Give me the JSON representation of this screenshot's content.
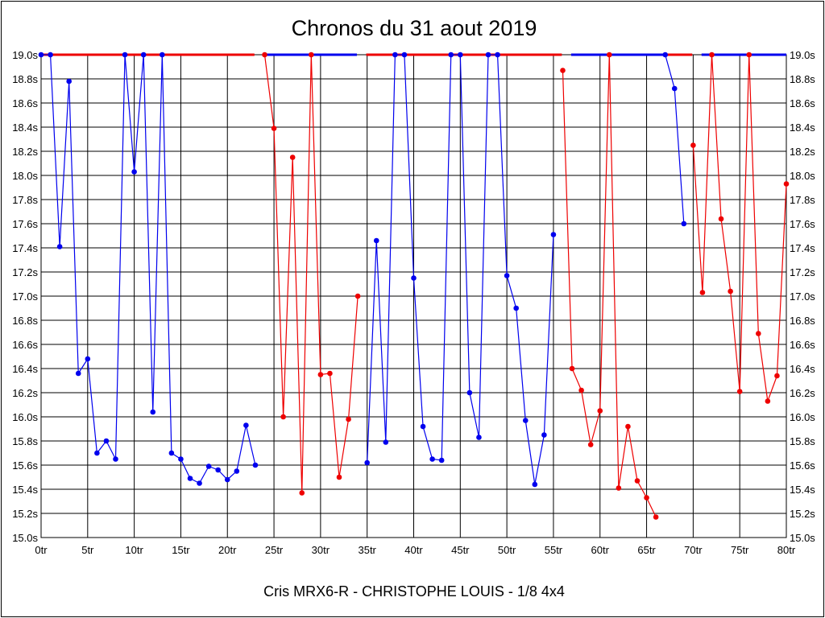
{
  "chart_data": {
    "type": "line",
    "title": "Chronos du 31 aout 2019",
    "caption": "Cris MRX6-R - CHRISTOPHE LOUIS - 1/8 4x4",
    "x_tick_labels": [
      "0tr",
      "5tr",
      "10tr",
      "15tr",
      "20tr",
      "25tr",
      "30tr",
      "35tr",
      "40tr",
      "45tr",
      "50tr",
      "55tr",
      "60tr",
      "65tr",
      "70tr",
      "75tr",
      "80tr"
    ],
    "y_tick_labels": [
      "15.0s",
      "15.2s",
      "15.4s",
      "15.6s",
      "15.8s",
      "16.0s",
      "16.2s",
      "16.4s",
      "16.6s",
      "16.8s",
      "17.0s",
      "17.2s",
      "17.4s",
      "17.6s",
      "17.8s",
      "18.0s",
      "18.2s",
      "18.4s",
      "18.6s",
      "18.8s",
      "19.0s"
    ],
    "xlim": [
      0,
      80
    ],
    "ylim": [
      15.0,
      19.0
    ],
    "grid": true,
    "colors": {
      "series_a": "#0000ee",
      "series_b": "#ee0000"
    },
    "segments": [
      {
        "color": "series_a",
        "points": [
          [
            0,
            19.0
          ],
          [
            1,
            19.0
          ],
          [
            2,
            17.41
          ],
          [
            3,
            18.78
          ],
          [
            4,
            16.36
          ],
          [
            5,
            16.48
          ],
          [
            6,
            15.7
          ],
          [
            7,
            15.8
          ],
          [
            8,
            15.65
          ],
          [
            9,
            19.0
          ],
          [
            10,
            18.03
          ],
          [
            11,
            19.0
          ],
          [
            12,
            16.04
          ],
          [
            13,
            19.0
          ],
          [
            14,
            15.7
          ],
          [
            15,
            15.65
          ],
          [
            16,
            15.49
          ],
          [
            17,
            15.45
          ],
          [
            18,
            15.59
          ],
          [
            19,
            15.56
          ],
          [
            20,
            15.48
          ],
          [
            21,
            15.55
          ],
          [
            22,
            15.93
          ],
          [
            23,
            15.6
          ]
        ]
      },
      {
        "color": "series_b",
        "points": [
          [
            24,
            19.0
          ],
          [
            25,
            18.39
          ],
          [
            26,
            16.0
          ],
          [
            27,
            18.15
          ],
          [
            28,
            15.37
          ],
          [
            29,
            19.0
          ],
          [
            30,
            16.35
          ],
          [
            31,
            16.36
          ],
          [
            32,
            15.5
          ],
          [
            33,
            15.98
          ],
          [
            34,
            17.0
          ]
        ]
      },
      {
        "color": "series_a",
        "points": [
          [
            35,
            15.62
          ],
          [
            36,
            17.46
          ],
          [
            37,
            15.79
          ],
          [
            38,
            19.0
          ],
          [
            39,
            19.0
          ],
          [
            40,
            17.15
          ],
          [
            41,
            15.92
          ],
          [
            42,
            15.65
          ],
          [
            43,
            15.64
          ],
          [
            44,
            19.0
          ],
          [
            45,
            19.0
          ],
          [
            46,
            16.2
          ],
          [
            47,
            15.83
          ],
          [
            48,
            19.0
          ],
          [
            49,
            19.0
          ],
          [
            50,
            17.17
          ],
          [
            51,
            16.9
          ],
          [
            52,
            15.97
          ],
          [
            53,
            15.44
          ],
          [
            54,
            15.85
          ],
          [
            55,
            17.51
          ]
        ]
      },
      {
        "color": "series_b",
        "points": [
          [
            56,
            18.87
          ],
          [
            57,
            16.4
          ],
          [
            58,
            16.22
          ],
          [
            59,
            15.77
          ],
          [
            60,
            16.05
          ],
          [
            61,
            19.0
          ],
          [
            62,
            15.41
          ],
          [
            63,
            15.92
          ],
          [
            64,
            15.47
          ],
          [
            65,
            15.33
          ],
          [
            66,
            15.17
          ]
        ]
      },
      {
        "color": "series_a",
        "points": [
          [
            67,
            19.0
          ],
          [
            68,
            18.72
          ],
          [
            69,
            17.6
          ]
        ]
      },
      {
        "color": "series_b",
        "points": [
          [
            70,
            18.25
          ],
          [
            71,
            17.03
          ],
          [
            72,
            19.0
          ],
          [
            73,
            17.64
          ],
          [
            74,
            17.04
          ],
          [
            75,
            16.21
          ],
          [
            76,
            19.0
          ],
          [
            77,
            16.69
          ],
          [
            78,
            16.13
          ],
          [
            79,
            16.34
          ],
          [
            80,
            17.93
          ]
        ]
      }
    ],
    "overflow_line": [
      {
        "color": "series_b",
        "from": 0,
        "to": 22.9
      },
      {
        "color": "series_a",
        "from": 23.9,
        "to": 33.9
      },
      {
        "color": "series_b",
        "from": 34.9,
        "to": 55.9
      },
      {
        "color": "series_a",
        "from": 56.9,
        "to": 66.9
      },
      {
        "color": "series_b",
        "from": 67,
        "to": 69.9
      },
      {
        "color": "series_a",
        "from": 70.9,
        "to": 80
      }
    ]
  }
}
